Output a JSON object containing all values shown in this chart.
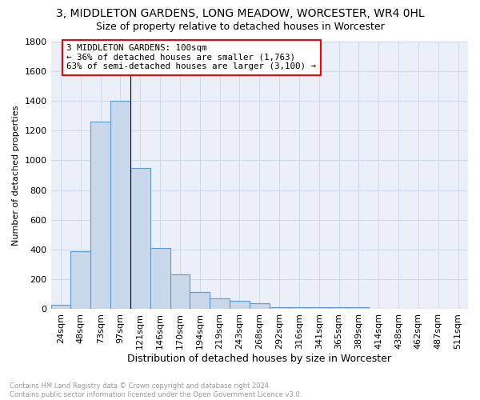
{
  "title": "3, MIDDLETON GARDENS, LONG MEADOW, WORCESTER, WR4 0HL",
  "subtitle": "Size of property relative to detached houses in Worcester",
  "xlabel": "Distribution of detached houses by size in Worcester",
  "ylabel": "Number of detached properties",
  "categories": [
    "24sqm",
    "48sqm",
    "73sqm",
    "97sqm",
    "121sqm",
    "146sqm",
    "170sqm",
    "194sqm",
    "219sqm",
    "243sqm",
    "268sqm",
    "292sqm",
    "316sqm",
    "341sqm",
    "365sqm",
    "389sqm",
    "414sqm",
    "438sqm",
    "462sqm",
    "487sqm",
    "511sqm"
  ],
  "values": [
    30,
    390,
    1260,
    1400,
    950,
    410,
    235,
    115,
    70,
    55,
    40,
    15,
    15,
    15,
    15,
    15,
    0,
    0,
    0,
    0,
    0
  ],
  "bar_color": "#c9d9eb",
  "bar_edge_color": "#5b9bd5",
  "annotation_text": "3 MIDDLETON GARDENS: 100sqm\n← 36% of detached houses are smaller (1,763)\n63% of semi-detached houses are larger (3,100) →",
  "annotation_box_color": "white",
  "annotation_box_edge_color": "red",
  "ylim": [
    0,
    1800
  ],
  "yticks": [
    0,
    200,
    400,
    600,
    800,
    1000,
    1200,
    1400,
    1600,
    1800
  ],
  "grid_color": "#d0d8ea",
  "background_color": "#eaeff8",
  "title_fontsize": 10,
  "subtitle_fontsize": 9,
  "footer_text": "Contains HM Land Registry data © Crown copyright and database right 2024.\nContains public sector information licensed under the Open Government Licence v3.0.",
  "footer_color": "#999999",
  "ylabel_fontsize": 8,
  "xlabel_fontsize": 9
}
